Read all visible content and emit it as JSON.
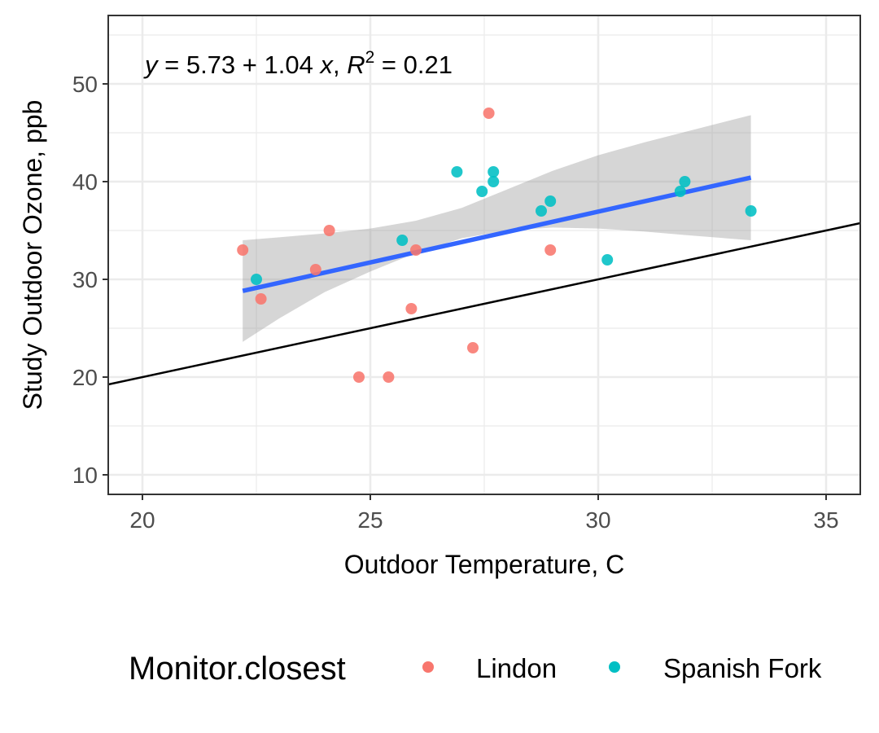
{
  "chart_data": {
    "type": "scatter",
    "annotation": {
      "y_var": "y",
      "eq_part": " = 5.73 + 1.04 ",
      "x_var": "x",
      "sep": ", ",
      "r_var": "R",
      "r_sup": "2",
      "r_val": " = 0.21"
    },
    "xlabel": "Outdoor Temperature, C",
    "ylabel": "Study Outdoor Ozone, ppb",
    "xlim": [
      19.25,
      35.75
    ],
    "ylim": [
      8.0,
      57.0
    ],
    "x_ticks": [
      20,
      25,
      30,
      35
    ],
    "y_ticks": [
      10,
      20,
      30,
      40,
      50
    ],
    "x_tick_labels": [
      "20",
      "25",
      "30",
      "35"
    ],
    "y_tick_labels": [
      "10",
      "20",
      "30",
      "40",
      "50"
    ],
    "grid": true,
    "legend": {
      "title": "Monitor.closest",
      "position": "bottom",
      "entries": [
        "Lindon",
        "Spanish Fork"
      ]
    },
    "series": [
      {
        "name": "Lindon",
        "color": "#F8766D",
        "points": [
          [
            22.2,
            33
          ],
          [
            22.6,
            28
          ],
          [
            23.8,
            31
          ],
          [
            24.1,
            35
          ],
          [
            24.75,
            20
          ],
          [
            25.4,
            20
          ],
          [
            25.9,
            27
          ],
          [
            26.0,
            33
          ],
          [
            27.25,
            23
          ],
          [
            27.6,
            47
          ],
          [
            28.95,
            33
          ]
        ]
      },
      {
        "name": "Spanish Fork",
        "color": "#00BFC4",
        "points": [
          [
            22.5,
            30
          ],
          [
            25.7,
            34
          ],
          [
            26.9,
            41
          ],
          [
            27.45,
            39
          ],
          [
            27.7,
            41
          ],
          [
            27.7,
            40
          ],
          [
            28.75,
            37
          ],
          [
            28.95,
            38
          ],
          [
            30.2,
            32
          ],
          [
            31.8,
            39
          ],
          [
            31.9,
            40
          ],
          [
            33.35,
            37
          ]
        ]
      }
    ],
    "fit": {
      "method": "lm",
      "intercept": 5.73,
      "slope": 1.04,
      "x_range": [
        22.2,
        33.35
      ],
      "color": "#3366FF",
      "band_color": "#999999",
      "ci": [
        [
          22.2,
          23.6,
          34.0
        ],
        [
          23.0,
          26.0,
          34.3
        ],
        [
          24.0,
          28.7,
          34.7
        ],
        [
          25.0,
          30.8,
          35.2
        ],
        [
          26.0,
          32.7,
          36.0
        ],
        [
          27.0,
          34.2,
          37.3
        ],
        [
          28.0,
          35.0,
          39.2
        ],
        [
          29.0,
          35.3,
          41.1
        ],
        [
          30.0,
          35.2,
          42.7
        ],
        [
          31.0,
          34.9,
          44.0
        ],
        [
          32.0,
          34.5,
          45.2
        ],
        [
          33.35,
          34.0,
          46.8
        ]
      ]
    },
    "reference_line": {
      "intercept": 0,
      "slope": 1,
      "color": "#000000"
    }
  }
}
